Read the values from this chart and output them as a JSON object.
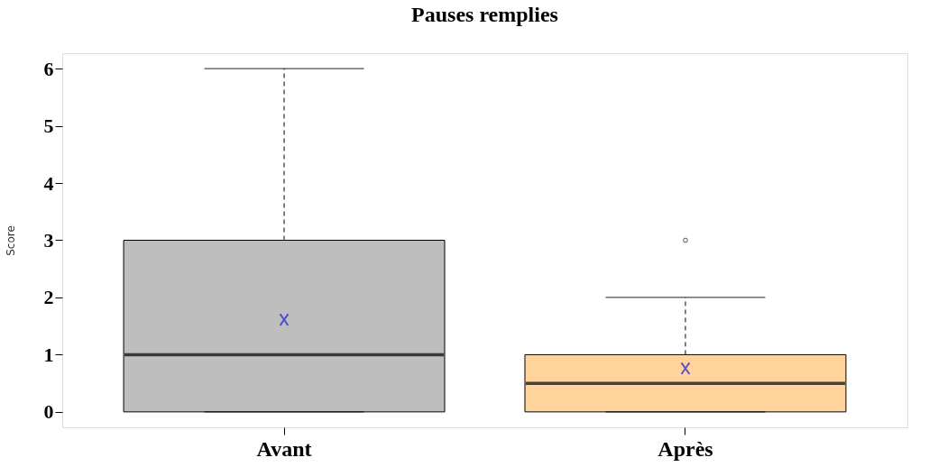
{
  "chart_data": {
    "type": "box",
    "title": "Pauses remplies",
    "ylabel": "Score",
    "categories": [
      "Avant",
      "Après"
    ],
    "colors": [
      "#bebebe",
      "#ffd39b"
    ],
    "boxes": [
      {
        "low": 0,
        "q1": 0,
        "median": 1,
        "q3": 3,
        "high": 6,
        "mean": 1.61
      },
      {
        "low": 0,
        "q1": 0,
        "median": 0.5,
        "q3": 1,
        "high": 2,
        "mean": 0.76,
        "outliers": [
          3
        ]
      }
    ],
    "marker": "cross",
    "ylim": [
      -0.27,
      6.27
    ],
    "yticks": [
      0,
      1,
      2,
      3,
      4,
      5,
      6
    ],
    "legend": false
  }
}
